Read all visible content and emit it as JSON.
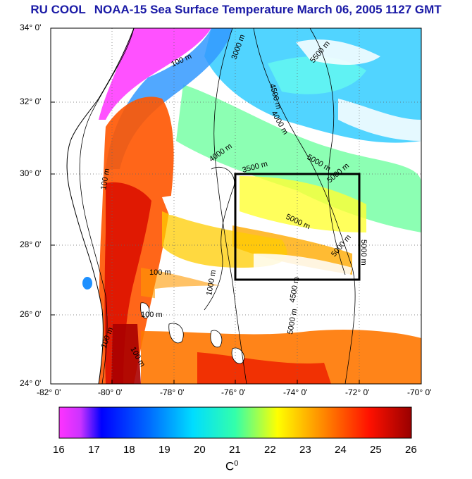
{
  "title": {
    "part1": "RU COOL",
    "part2": "NOAA-15 Sea Surface Temperature March 06, 2005 1127 GMT"
  },
  "latitude_labels": [
    "34° 0'",
    "32° 0'",
    "30° 0'",
    "28° 0'",
    "26° 0'",
    "24° 0'"
  ],
  "longitude_labels": [
    "-82° 0'",
    "-80° 0'",
    "-78° 0'",
    "-76° 0'",
    "-74° 0'",
    "-72° 0'",
    "-70° 0'"
  ],
  "depth_contour_labels": [
    "100 m",
    "1000 m",
    "3000 m",
    "3500 m",
    "4000 m",
    "4500 m",
    "5000 m",
    "5500 m"
  ],
  "colorbar": {
    "ticks": [
      "16",
      "17",
      "18",
      "19",
      "20",
      "21",
      "22",
      "23",
      "24",
      "25",
      "26"
    ],
    "unit_base": "C",
    "unit_sup": "0"
  },
  "colors": {
    "title": "#1a1aa6",
    "land": "#ffffff",
    "box": "#000000"
  }
}
